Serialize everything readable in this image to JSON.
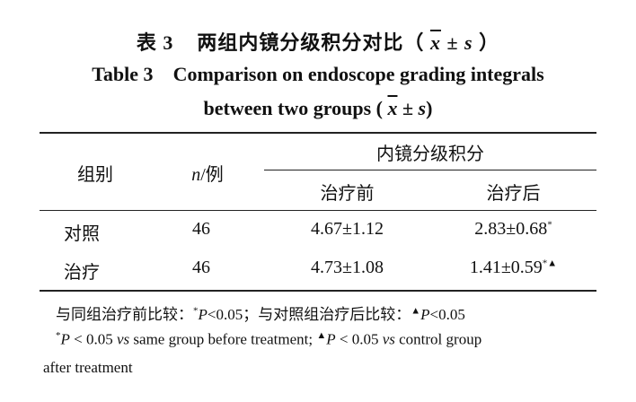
{
  "title_cn": {
    "label": "表 3",
    "text": "两组内镜分级积分对比（",
    "xbar": "x",
    "pm": " ± ",
    "s": "s",
    "close": " ）"
  },
  "title_en": {
    "label": "Table 3",
    "line1": "Comparison on endoscope grading integrals",
    "line2_text": "between two groups (",
    "xbar": "x",
    "pm": " ± ",
    "s": "s",
    "close": ")"
  },
  "headers": {
    "group": "组别",
    "n_italic": "n",
    "n_suffix": "/例",
    "span": "内镜分级积分",
    "before": "治疗前",
    "after": "治疗后"
  },
  "rows": [
    {
      "group": "对照",
      "n": "46",
      "before": "4.67±1.12",
      "after": "2.83±0.68",
      "after_mark": "*"
    },
    {
      "group": "治疗",
      "n": "46",
      "before": "4.73±1.08",
      "after": "1.41±0.59",
      "after_mark": "*▲"
    }
  ],
  "notes": {
    "cn_a": "与同组治疗前比较：",
    "cn_star": "*",
    "cn_p": "P",
    "cn_b": "<0.05；与对照组治疗后比较：",
    "cn_tri": "▲",
    "cn_p2": "P",
    "cn_c": "<0.05",
    "en_star": "*",
    "en_p": "P",
    "en_a": " < 0.05 ",
    "en_vs": "vs",
    "en_b": " same group before treatment; ",
    "en_tri": "▲",
    "en_p2": "P",
    "en_c": " < 0.05 ",
    "en_vs2": "vs",
    "en_d": " control group",
    "en_line2": "after treatment"
  }
}
